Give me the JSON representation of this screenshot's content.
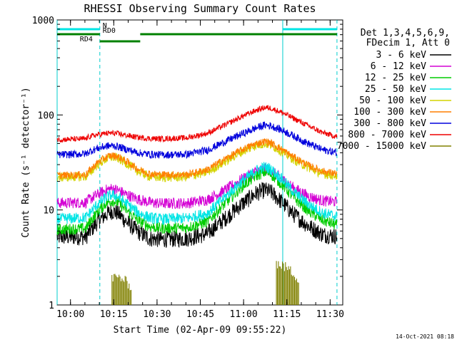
{
  "chart_data": {
    "type": "line",
    "title": "RHESSI Observing Summary Count Rates",
    "xlabel": "Start Time (02-Apr-09 09:55:22)",
    "ylabel": "Count Rate (s⁻¹ detector⁻¹)",
    "y_scale": "log",
    "ylim": [
      1,
      1000
    ],
    "xlim_minutes_after_start": [
      0,
      99
    ],
    "x_tick_labels": [
      "10:00",
      "10:15",
      "10:30",
      "10:45",
      "11:00",
      "11:15",
      "11:30"
    ],
    "x_tick_minutes_after_start": [
      4.63,
      19.63,
      34.63,
      49.63,
      64.63,
      79.63,
      94.63
    ],
    "y_tick_labels": [
      "1",
      "10",
      "100",
      "1000"
    ],
    "y_tick_values": [
      1,
      10,
      100,
      1000
    ],
    "legend_placement": "right",
    "legend_header": [
      "Det 1,3,4,5,6,9,",
      "FDecim 1, Att 0"
    ],
    "series": [
      {
        "name": "3 - 6 keV",
        "color": "#000000",
        "noise": 0.09,
        "points": [
          [
            0,
            5.2
          ],
          [
            10,
            5.2
          ],
          [
            11,
            5.8
          ],
          [
            14,
            7.5
          ],
          [
            17,
            9.0
          ],
          [
            19,
            9.7
          ],
          [
            21,
            9.3
          ],
          [
            24,
            7.5
          ],
          [
            28,
            5.9
          ],
          [
            32,
            5.0
          ],
          [
            36,
            4.9
          ],
          [
            45,
            5.0
          ],
          [
            52,
            5.6
          ],
          [
            58,
            8.0
          ],
          [
            64,
            11.5
          ],
          [
            69,
            15.0
          ],
          [
            72,
            16.2
          ],
          [
            74,
            15.5
          ],
          [
            78,
            12.0
          ],
          [
            82,
            9.0
          ],
          [
            87,
            6.8
          ],
          [
            92,
            5.5
          ],
          [
            99,
            5.2
          ]
        ]
      },
      {
        "name": "6 - 12 keV",
        "color": "#d400d4",
        "noise": 0.06,
        "points": [
          [
            0,
            11.8
          ],
          [
            10,
            12.0
          ],
          [
            11,
            12.8
          ],
          [
            14,
            14.5
          ],
          [
            17,
            16.2
          ],
          [
            19,
            16.8
          ],
          [
            21,
            16.2
          ],
          [
            24,
            14.5
          ],
          [
            28,
            13.0
          ],
          [
            32,
            12.0
          ],
          [
            36,
            11.7
          ],
          [
            45,
            11.8
          ],
          [
            52,
            12.8
          ],
          [
            58,
            16.0
          ],
          [
            64,
            21.0
          ],
          [
            69,
            25.5
          ],
          [
            72,
            27.0
          ],
          [
            74,
            26.0
          ],
          [
            78,
            21.0
          ],
          [
            82,
            17.0
          ],
          [
            87,
            14.0
          ],
          [
            92,
            12.5
          ],
          [
            99,
            12.0
          ]
        ]
      },
      {
        "name": "12 - 25 keV",
        "color": "#00cc00",
        "noise": 0.06,
        "points": [
          [
            0,
            6.2
          ],
          [
            10,
            6.4
          ],
          [
            11,
            7.2
          ],
          [
            14,
            9.6
          ],
          [
            17,
            11.8
          ],
          [
            19,
            12.5
          ],
          [
            21,
            12.0
          ],
          [
            24,
            10.0
          ],
          [
            28,
            7.8
          ],
          [
            32,
            6.7
          ],
          [
            36,
            6.4
          ],
          [
            45,
            6.5
          ],
          [
            52,
            7.5
          ],
          [
            58,
            11.5
          ],
          [
            64,
            17.5
          ],
          [
            69,
            23.0
          ],
          [
            72,
            25.0
          ],
          [
            74,
            24.0
          ],
          [
            78,
            18.5
          ],
          [
            82,
            13.5
          ],
          [
            87,
            9.8
          ],
          [
            92,
            7.8
          ],
          [
            99,
            6.5
          ]
        ]
      },
      {
        "name": "25 - 50 keV",
        "color": "#00e5e5",
        "noise": 0.06,
        "points": [
          [
            0,
            8.0
          ],
          [
            10,
            8.3
          ],
          [
            11,
            9.1
          ],
          [
            14,
            11.4
          ],
          [
            17,
            13.6
          ],
          [
            19,
            14.4
          ],
          [
            21,
            13.8
          ],
          [
            24,
            11.7
          ],
          [
            28,
            9.4
          ],
          [
            32,
            8.3
          ],
          [
            36,
            8.0
          ],
          [
            45,
            8.2
          ],
          [
            52,
            9.2
          ],
          [
            58,
            13.5
          ],
          [
            64,
            20.0
          ],
          [
            69,
            26.0
          ],
          [
            72,
            28.5
          ],
          [
            74,
            27.0
          ],
          [
            78,
            21.0
          ],
          [
            82,
            15.5
          ],
          [
            87,
            11.5
          ],
          [
            92,
            9.3
          ],
          [
            99,
            8.2
          ]
        ]
      },
      {
        "name": "50 - 100 keV",
        "color": "#d4d400",
        "noise": 0.05,
        "points": [
          [
            0,
            22.0
          ],
          [
            10,
            22.5
          ],
          [
            11,
            24.0
          ],
          [
            14,
            30.0
          ],
          [
            17,
            34.5
          ],
          [
            19,
            36.0
          ],
          [
            21,
            35.0
          ],
          [
            24,
            31.0
          ],
          [
            28,
            25.5
          ],
          [
            32,
            22.5
          ],
          [
            36,
            22.0
          ],
          [
            45,
            22.3
          ],
          [
            52,
            25.0
          ],
          [
            58,
            32.0
          ],
          [
            64,
            41.0
          ],
          [
            69,
            48.0
          ],
          [
            72,
            50.0
          ],
          [
            74,
            48.5
          ],
          [
            78,
            41.0
          ],
          [
            82,
            34.0
          ],
          [
            87,
            28.0
          ],
          [
            92,
            24.0
          ],
          [
            99,
            22.5
          ]
        ]
      },
      {
        "name": "100 - 300 keV",
        "color": "#ff7f00",
        "noise": 0.04,
        "points": [
          [
            0,
            23.0
          ],
          [
            10,
            23.5
          ],
          [
            11,
            25.5
          ],
          [
            14,
            31.5
          ],
          [
            17,
            36.0
          ],
          [
            19,
            37.5
          ],
          [
            21,
            36.5
          ],
          [
            24,
            32.5
          ],
          [
            28,
            27.0
          ],
          [
            32,
            24.0
          ],
          [
            36,
            23.5
          ],
          [
            45,
            23.5
          ],
          [
            52,
            26.5
          ],
          [
            58,
            34.0
          ],
          [
            64,
            43.0
          ],
          [
            69,
            50.0
          ],
          [
            72,
            52.5
          ],
          [
            74,
            51.0
          ],
          [
            78,
            43.0
          ],
          [
            82,
            36.0
          ],
          [
            87,
            29.5
          ],
          [
            92,
            25.5
          ],
          [
            99,
            23.5
          ]
        ]
      },
      {
        "name": "300 - 800 keV",
        "color": "#0000dd",
        "noise": 0.04,
        "points": [
          [
            0,
            38.0
          ],
          [
            10,
            39.0
          ],
          [
            11,
            41.0
          ],
          [
            14,
            44.5
          ],
          [
            17,
            47.0
          ],
          [
            19,
            47.5
          ],
          [
            21,
            46.5
          ],
          [
            24,
            43.5
          ],
          [
            28,
            40.0
          ],
          [
            32,
            38.5
          ],
          [
            36,
            38.0
          ],
          [
            45,
            38.5
          ],
          [
            52,
            42.5
          ],
          [
            58,
            52.0
          ],
          [
            64,
            63.0
          ],
          [
            69,
            73.0
          ],
          [
            72,
            78.0
          ],
          [
            74,
            77.0
          ],
          [
            78,
            69.0
          ],
          [
            82,
            60.0
          ],
          [
            87,
            50.0
          ],
          [
            92,
            43.0
          ],
          [
            99,
            39.0
          ]
        ]
      },
      {
        "name": "800 - 7000 keV",
        "color": "#ee0000",
        "noise": 0.03,
        "points": [
          [
            0,
            55.0
          ],
          [
            10,
            56.0
          ],
          [
            11,
            59.0
          ],
          [
            14,
            62.0
          ],
          [
            17,
            64.0
          ],
          [
            19,
            64.5
          ],
          [
            21,
            63.5
          ],
          [
            24,
            61.0
          ],
          [
            28,
            58.0
          ],
          [
            32,
            56.5
          ],
          [
            36,
            56.0
          ],
          [
            45,
            57.5
          ],
          [
            52,
            64.0
          ],
          [
            58,
            78.0
          ],
          [
            64,
            96.0
          ],
          [
            69,
            112.0
          ],
          [
            72,
            120.0
          ],
          [
            74,
            118.0
          ],
          [
            78,
            106.0
          ],
          [
            82,
            92.0
          ],
          [
            87,
            77.0
          ],
          [
            92,
            65.0
          ],
          [
            99,
            57.0
          ]
        ]
      },
      {
        "name": "7000 - 15000 keV",
        "color": "#808000",
        "noise": 0.0,
        "points": [
          [
            19,
            2.0
          ],
          [
            22,
            2.0
          ],
          [
            24,
            1.8
          ],
          [
            26,
            1.6
          ],
          [
            76,
            2.8
          ],
          [
            78,
            2.7
          ],
          [
            80,
            2.5
          ],
          [
            82,
            2.2
          ],
          [
            84,
            1.9
          ]
        ]
      }
    ],
    "flags": {
      "N": {
        "label": "N",
        "color": "#00e5e5",
        "level": 0,
        "intervals_minutes": [
          [
            0,
            14.8
          ],
          [
            78.2,
            97
          ]
        ]
      },
      "RD0": {
        "label": "RD0",
        "color": "#008000",
        "level": 1,
        "intervals_minutes": [
          [
            0,
            14.8
          ],
          [
            28.8,
            97
          ]
        ]
      },
      "RD4": {
        "label": "RD4",
        "color": "#008000",
        "level": 2,
        "intervals_minutes": [
          [
            14.8,
            28.8
          ]
        ]
      }
    },
    "attenuator_markers_minutes": [
      14.8,
      97
    ],
    "night_markers_minutes": [
      0,
      78.2
    ],
    "gap_minutes": [
      14.8,
      28.8
    ]
  },
  "timestamp": "14-Oct-2021 08:18"
}
